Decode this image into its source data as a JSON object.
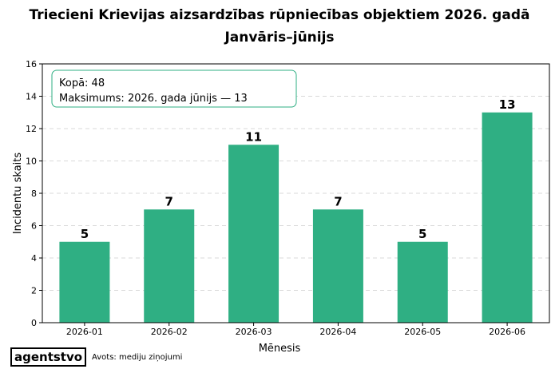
{
  "chart_data": {
    "type": "bar",
    "title": "Triecieni Krievijas aizsardzības rūpniecības objektiem 2026. gadā",
    "subtitle": "Janvāris–jūnijs",
    "xlabel": "Mēnesis",
    "ylabel": "Incidentu skaits",
    "categories": [
      "2026-01",
      "2026-02",
      "2026-03",
      "2026-04",
      "2026-05",
      "2026-06"
    ],
    "values": [
      5,
      7,
      11,
      7,
      5,
      13
    ],
    "ylim": [
      0,
      16
    ],
    "yticks": [
      "0",
      "2",
      "4",
      "6",
      "8",
      "10",
      "12",
      "14",
      "16"
    ],
    "grid": "horizontal-dashed",
    "bar_color": "#2faf83",
    "annotation": {
      "total": "Kopā: 48",
      "max": "Maksimums: 2026. gada jūnijs — 13"
    }
  },
  "footer": {
    "brand": "agentstvo",
    "source": "Avots: mediju ziņojumi"
  }
}
